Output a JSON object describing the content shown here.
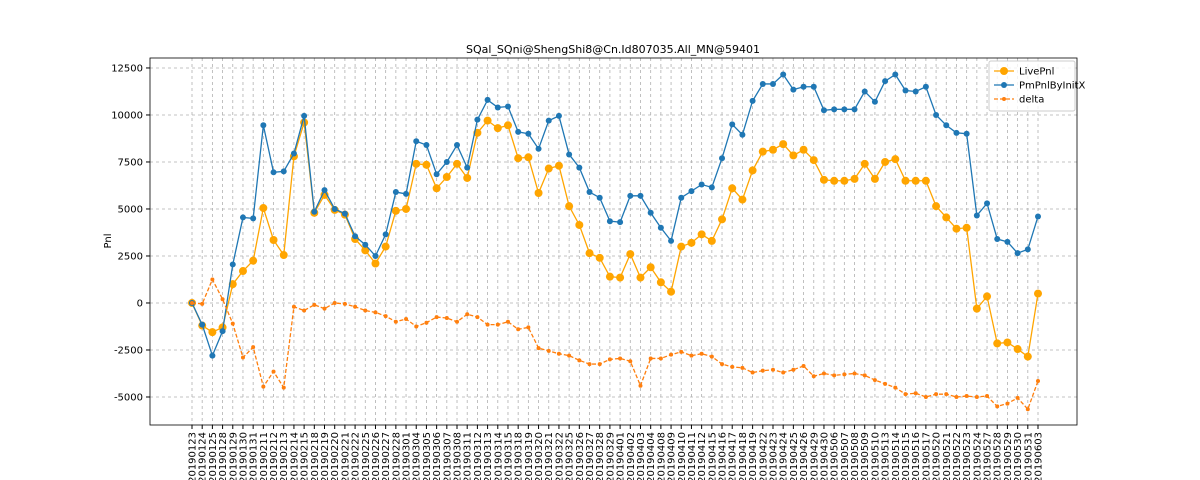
{
  "chart_data": {
    "type": "line",
    "title": "SQal_SQni@ShengShi8@Cn.Id807035.All_MN@59401",
    "y_label": "Pnl",
    "categories": [
      "20190123",
      "20190124",
      "20190125",
      "20190128",
      "20190129",
      "20190130",
      "20190131",
      "20190211",
      "20190212",
      "20190213",
      "20190214",
      "20190215",
      "20190218",
      "20190219",
      "20190220",
      "20190221",
      "20190222",
      "20190225",
      "20190226",
      "20190227",
      "20190228",
      "20190301",
      "20190304",
      "20190305",
      "20190306",
      "20190307",
      "20190308",
      "20190311",
      "20190312",
      "20190313",
      "20190314",
      "20190315",
      "20190318",
      "20190319",
      "20190320",
      "20190321",
      "20190322",
      "20190325",
      "20190326",
      "20190327",
      "20190328",
      "20190329",
      "20190401",
      "20190402",
      "20190403",
      "20190404",
      "20190408",
      "20190409",
      "20190410",
      "20190411",
      "20190412",
      "20190415",
      "20190416",
      "20190417",
      "20190418",
      "20190419",
      "20190422",
      "20190423",
      "20190424",
      "20190425",
      "20190426",
      "20190429",
      "20190430",
      "20190506",
      "20190507",
      "20190508",
      "20190509",
      "20190510",
      "20190513",
      "20190514",
      "20190515",
      "20190516",
      "20190517",
      "20190520",
      "20190521",
      "20190522",
      "20190523",
      "20190524",
      "20190527",
      "20190528",
      "20190529",
      "20190530",
      "20190531",
      "20190603"
    ],
    "series": [
      {
        "name": "LivePnl",
        "color": "#ffa500",
        "linestyle": "solid",
        "marker_size": 4,
        "values": [
          0,
          -1200,
          -1550,
          -1300,
          1000,
          1700,
          2250,
          5050,
          3350,
          2550,
          7800,
          9600,
          4800,
          5750,
          4950,
          4700,
          3400,
          2800,
          2100,
          3000,
          4900,
          5000,
          7400,
          7350,
          6100,
          6700,
          7400,
          6650,
          9050,
          9700,
          9300,
          9450,
          7700,
          7750,
          5850,
          7150,
          7300,
          5150,
          4150,
          2650,
          2400,
          1400,
          1350,
          2600,
          1350,
          1900,
          1100,
          600,
          3000,
          3200,
          3650,
          3300,
          4450,
          6100,
          5500,
          7050,
          8050,
          8150,
          8450,
          7850,
          8150,
          7600,
          6550,
          6500,
          6500,
          6600,
          7400,
          6600,
          7500,
          7650,
          6500,
          6500,
          6500,
          5150,
          4550,
          3950,
          4000,
          -300,
          350,
          -2150,
          -2100,
          -2450,
          -2850,
          500
        ]
      },
      {
        "name": "PmPnlByInitX",
        "color": "#1f77b4",
        "linestyle": "solid",
        "marker_size": 3,
        "values": [
          0,
          -1150,
          -2800,
          -1500,
          2050,
          4550,
          4500,
          9450,
          6950,
          7000,
          7950,
          9950,
          4850,
          6000,
          5000,
          4750,
          3550,
          3100,
          2500,
          3650,
          5900,
          5800,
          8600,
          8400,
          6850,
          7500,
          8400,
          7200,
          9750,
          10800,
          10400,
          10450,
          9100,
          9000,
          8200,
          9700,
          9950,
          7900,
          7200,
          5900,
          5600,
          4350,
          4300,
          5700,
          5700,
          4800,
          4000,
          3300,
          5600,
          5950,
          6300,
          6150,
          7700,
          9500,
          8950,
          10750,
          11650,
          11650,
          12150,
          11350,
          11500,
          11500,
          10250,
          10300,
          10300,
          10300,
          11250,
          10700,
          11800,
          12150,
          11300,
          11250,
          11500,
          10000,
          9450,
          9050,
          9000,
          4650,
          5300,
          3400,
          3250,
          2650,
          2850,
          4600
        ]
      },
      {
        "name": "delta",
        "color": "#ff7f0e",
        "linestyle": "dashed",
        "marker_size": 2,
        "values": [
          0,
          -50,
          1250,
          200,
          -1100,
          -2900,
          -2350,
          -4450,
          -3650,
          -4500,
          -200,
          -400,
          -100,
          -300,
          0,
          -50,
          -200,
          -400,
          -500,
          -700,
          -1000,
          -850,
          -1250,
          -1050,
          -750,
          -800,
          -1000,
          -600,
          -750,
          -1150,
          -1150,
          -1000,
          -1400,
          -1300,
          -2400,
          -2550,
          -2700,
          -2800,
          -3050,
          -3250,
          -3250,
          -3000,
          -2950,
          -3100,
          -4400,
          -2950,
          -2950,
          -2750,
          -2600,
          -2800,
          -2700,
          -2850,
          -3250,
          -3400,
          -3450,
          -3700,
          -3600,
          -3550,
          -3700,
          -3550,
          -3350,
          -3900,
          -3750,
          -3850,
          -3800,
          -3750,
          -3850,
          -4100,
          -4300,
          -4500,
          -4850,
          -4800,
          -5000,
          -4850,
          -4850,
          -5000,
          -4950,
          -5000,
          -4950,
          -5500,
          -5350,
          -5050,
          -5650,
          -4150
        ]
      }
    ],
    "ylim": [
      -6490,
      13030
    ],
    "yticks": [
      -5000,
      -2500,
      0,
      2500,
      5000,
      7500,
      10000,
      12500
    ],
    "grid": true,
    "legend": "upper right"
  }
}
